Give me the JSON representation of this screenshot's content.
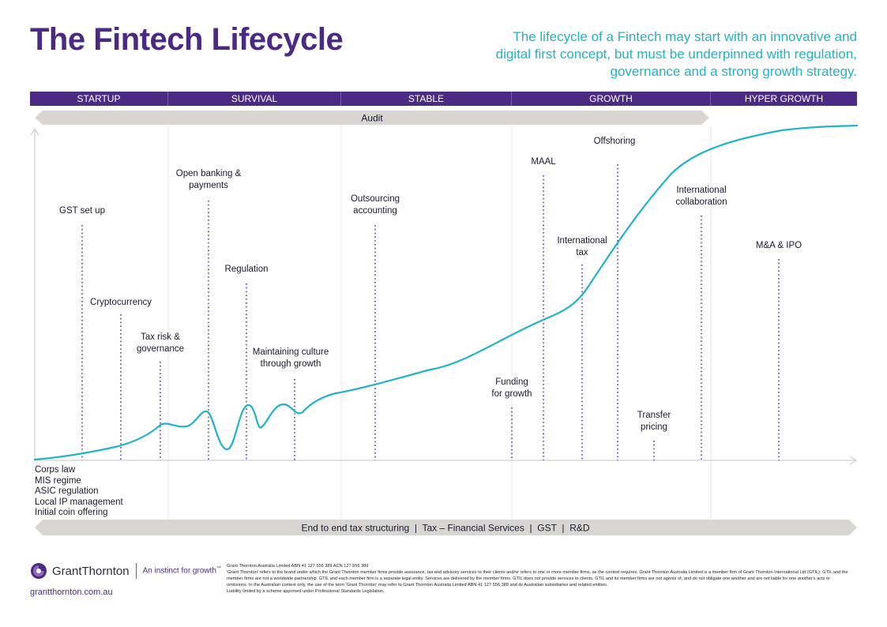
{
  "header": {
    "title": "The Fintech Lifecycle",
    "subtitle": "The lifecycle of a Fintech may start with an innovative and digital first concept, but must be underpinned with regulation, governance and a strong growth strategy."
  },
  "stages": [
    "STARTUP",
    "SURVIVAL",
    "STABLE",
    "GROWTH",
    "HYPER GROWTH"
  ],
  "audit_label": "Audit",
  "bottom_bar_label": "End to end tax structuring  |  Tax – Financial Services  |  GST  |  R&D",
  "milestones": [
    {
      "id": "gst",
      "label": "GST set up"
    },
    {
      "id": "crypto",
      "label": "Cryptocurrency"
    },
    {
      "id": "taxrisk",
      "label": "Tax risk &\ngovernance"
    },
    {
      "id": "openbanking",
      "label": "Open banking &\npayments"
    },
    {
      "id": "regulation",
      "label": "Regulation"
    },
    {
      "id": "culture",
      "label": "Maintaining culture\nthrough growth"
    },
    {
      "id": "outsourcing",
      "label": "Outsourcing\naccounting"
    },
    {
      "id": "funding",
      "label": "Funding\nfor growth"
    },
    {
      "id": "maal",
      "label": "MAAL"
    },
    {
      "id": "inttax",
      "label": "International\ntax"
    },
    {
      "id": "offshoring",
      "label": "Offshoring"
    },
    {
      "id": "transfer",
      "label": "Transfer\npricing"
    },
    {
      "id": "intcollab",
      "label": "International\ncollaboration"
    },
    {
      "id": "mna",
      "label": "M&A & IPO"
    }
  ],
  "startup_items": [
    "Corps law",
    "MIS regime",
    "ASIC regulation",
    "Local IP management",
    "Initial coin offering"
  ],
  "footer": {
    "brand": "GrantThornton",
    "tagline": "An instinct for growth",
    "tagline_mark": "™",
    "website": "grantthornton.com.au",
    "legal_line1": "Grant Thornton Australia Limited ABN 41 127 556 389 ACN 127 556 389",
    "legal_line2": "'Grant Thornton' refers to the brand under which the Grant Thornton member firms provide assurance, tax and advisory services to their clients and/or refers to one or more member firms, as the context requires. Grant Thornton Australia Limited is a member firm of Grant Thornton International Ltd (GTIL). GTIL and the member firms are not a worldwide partnership. GTIL and each member firm is a separate legal entity. Services are delivered by the member firms. GTIL does not provide services to clients. GTIL and its member firms are not agents of, and do not obligate one another and are not liable for one another's acts or omissions. In the Australian context only, the use of the term 'Grant Thornton' may refer to Grant Thornton Australia Limited ABN 41 127 556 389 and its Australian subsidiaries and related entities.",
    "legal_line3": "Liability limited by a scheme approved under Professional Standards Legislation."
  },
  "colors": {
    "purple": "#4b2a84",
    "teal": "#1fb3c6",
    "grey_bar": "#d8d6d3",
    "dotted": "#5a3f9a"
  }
}
